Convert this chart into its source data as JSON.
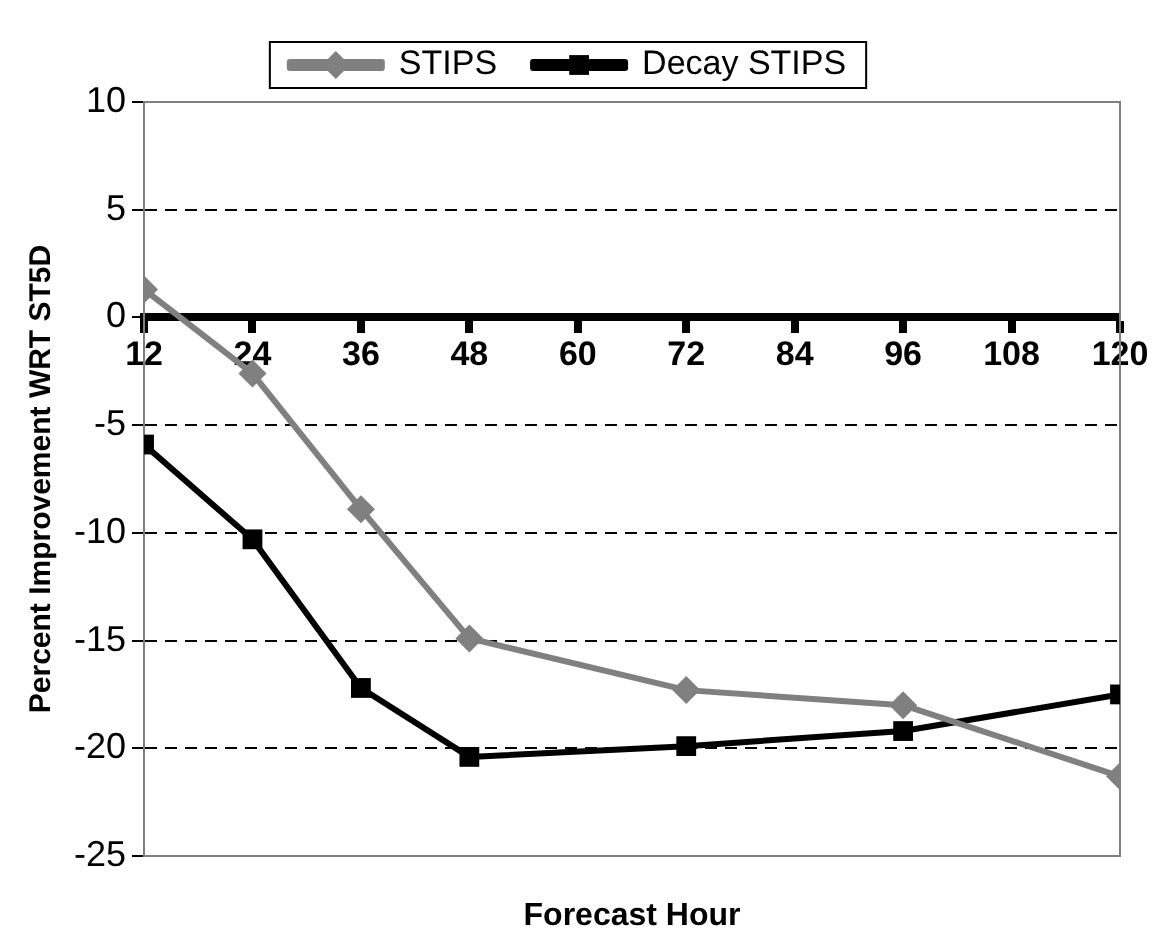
{
  "chart_data": {
    "type": "line",
    "xlabel": "Forecast Hour",
    "ylabel": "Percent Improvement WRT ST5D",
    "x": [
      12,
      24,
      36,
      48,
      72,
      96,
      120
    ],
    "series": [
      {
        "name": "STIPS",
        "color": "#808080",
        "marker": "diamond",
        "values": [
          1.3,
          -2.6,
          -8.9,
          -14.9,
          -17.3,
          -18.0,
          -21.3
        ]
      },
      {
        "name": "Decay STIPS",
        "color": "#000000",
        "marker": "square",
        "values": [
          -5.9,
          -10.3,
          -17.2,
          -20.4,
          -19.9,
          -19.2,
          -17.5
        ]
      }
    ],
    "xlim": [
      12,
      120
    ],
    "xticks": [
      12,
      24,
      36,
      48,
      60,
      72,
      84,
      96,
      108,
      120
    ],
    "ylim": [
      -25,
      10
    ],
    "yticks": [
      -25,
      -20,
      -15,
      -10,
      -5,
      0,
      5,
      10
    ],
    "grid": "y",
    "legend": "top",
    "line_style": "solid"
  }
}
